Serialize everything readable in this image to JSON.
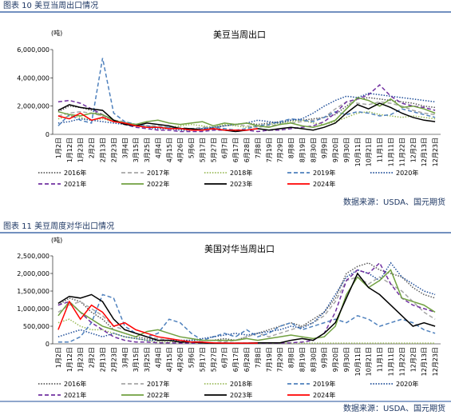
{
  "figures": [
    {
      "caption": "图表 10 美豆当周出口情况",
      "source": "数据来源：USDA、国元期货"
    },
    {
      "caption": "图表 11 美豆周度对华出口情况",
      "source": "数据来源：USDA、国元期货"
    }
  ],
  "chart_data": [
    {
      "type": "line",
      "title": "美豆当周出口",
      "y_label": "(吨)",
      "categories": [
        "1月2日",
        "1月12日",
        "1月23日",
        "2月2日",
        "2月13日",
        "2月23日",
        "3月4日",
        "3月15日",
        "3月25日",
        "4月4日",
        "4月15日",
        "4月26日",
        "5月6日",
        "5月17日",
        "5月27日",
        "6月7日",
        "6月17日",
        "6月28日",
        "7月8日",
        "7月19日",
        "7月29日",
        "8月8日",
        "8月19日",
        "8月30日",
        "9月9日",
        "9月20日",
        "9月30日",
        "10月11日",
        "10月21日",
        "11月1日",
        "11月11日",
        "11月22日",
        "12月2日",
        "12月13日",
        "12月23日"
      ],
      "ylim": [
        0,
        6000000
      ],
      "yticks": [
        0,
        {
          "value": 2000000,
          "label": "2,000,000"
        },
        {
          "value": 4000000,
          "label": "4,000,000"
        },
        {
          "value": 6000000,
          "label": "6,000,000"
        }
      ],
      "series": [
        {
          "name": "2016年",
          "color": "#595959",
          "dash": "dotted",
          "values": [
            1600000,
            2000000,
            1900000,
            1700000,
            1300000,
            1000000,
            800000,
            700000,
            600000,
            500000,
            500000,
            400000,
            400000,
            400000,
            500000,
            600000,
            700000,
            800000,
            700000,
            800000,
            900000,
            1000000,
            1000000,
            1100000,
            1200000,
            1400000,
            2000000,
            2500000,
            2600000,
            2500000,
            2400000,
            2300000,
            2200000,
            2000000,
            1900000
          ]
        },
        {
          "name": "2017年",
          "color": "#a6a6a6",
          "dash": "dashed",
          "values": [
            1300000,
            1500000,
            1600000,
            1500000,
            1300000,
            1000000,
            900000,
            700000,
            600000,
            600000,
            500000,
            500000,
            400000,
            500000,
            500000,
            600000,
            700000,
            600000,
            500000,
            600000,
            700000,
            800000,
            900000,
            1000000,
            1200000,
            1800000,
            2300000,
            2200000,
            2100000,
            2300000,
            2200000,
            2000000,
            1700000,
            1500000,
            1400000
          ]
        },
        {
          "name": "2018年",
          "color": "#9bbb59",
          "dash": "dotted",
          "values": [
            1100000,
            1300000,
            1200000,
            1000000,
            1100000,
            900000,
            800000,
            700000,
            600000,
            500000,
            500000,
            600000,
            700000,
            600000,
            500000,
            700000,
            600000,
            500000,
            600000,
            700000,
            800000,
            900000,
            1000000,
            800000,
            700000,
            900000,
            1200000,
            1500000,
            1600000,
            1400000,
            1300000,
            1200000,
            1300000,
            1200000,
            1100000
          ]
        },
        {
          "name": "2019年",
          "color": "#4f81bd",
          "dash": "dashed",
          "values": [
            600000,
            1400000,
            1000000,
            800000,
            5400000,
            1500000,
            900000,
            700000,
            600000,
            500000,
            500000,
            400000,
            300000,
            400000,
            500000,
            400000,
            300000,
            400000,
            600000,
            700000,
            900000,
            1100000,
            1000000,
            900000,
            1200000,
            1600000,
            1400000,
            1600000,
            1500000,
            1300000,
            1400000,
            1800000,
            1600000,
            1400000,
            1200000
          ]
        },
        {
          "name": "2020年",
          "color": "#1f4e99",
          "dash": "dotted",
          "values": [
            800000,
            900000,
            1100000,
            1000000,
            900000,
            800000,
            700000,
            600000,
            500000,
            400000,
            400000,
            300000,
            300000,
            400000,
            500000,
            600000,
            700000,
            800000,
            1000000,
            900000,
            800000,
            1000000,
            1100000,
            1500000,
            2000000,
            2400000,
            2700000,
            2600000,
            2900000,
            2800000,
            2700000,
            2600000,
            2500000,
            2400000,
            2300000
          ]
        },
        {
          "name": "2021年",
          "color": "#7030a0",
          "dash": "dashed",
          "values": [
            2300000,
            2400000,
            2200000,
            1800000,
            1400000,
            1000000,
            700000,
            500000,
            400000,
            300000,
            300000,
            200000,
            200000,
            200000,
            300000,
            300000,
            200000,
            300000,
            200000,
            300000,
            300000,
            400000,
            500000,
            600000,
            900000,
            1500000,
            2300000,
            2500000,
            2800000,
            3500000,
            2700000,
            2200000,
            2000000,
            1900000,
            1700000
          ]
        },
        {
          "name": "2022年",
          "color": "#70a040",
          "dash": "solid",
          "values": [
            1600000,
            1400000,
            1300000,
            1500000,
            1400000,
            1000000,
            800000,
            700000,
            900000,
            1000000,
            800000,
            700000,
            800000,
            900000,
            600000,
            800000,
            700000,
            800000,
            600000,
            500000,
            700000,
            800000,
            600000,
            500000,
            700000,
            1000000,
            1800000,
            2600000,
            2400000,
            2000000,
            2500000,
            1900000,
            2000000,
            1800000,
            1500000
          ]
        },
        {
          "name": "2023年",
          "color": "#000000",
          "dash": "solid",
          "values": [
            1700000,
            2100000,
            1900000,
            1800000,
            1700000,
            1000000,
            700000,
            600000,
            800000,
            700000,
            600000,
            400000,
            400000,
            300000,
            400000,
            300000,
            200000,
            300000,
            400000,
            300000,
            400000,
            500000,
            400000,
            300000,
            500000,
            800000,
            1500000,
            2100000,
            1800000,
            2200000,
            1900000,
            1500000,
            1200000,
            1000000,
            900000
          ]
        },
        {
          "name": "2024年",
          "color": "#ff0000",
          "dash": "solid",
          "values": [
            1300000,
            1100000,
            1500000,
            1000000,
            1200000,
            900000,
            800000,
            600000,
            500000,
            500000,
            400000,
            400000,
            300000,
            300000,
            400000,
            300000,
            300000,
            300000,
            400000,
            null,
            null,
            null,
            null,
            null,
            null,
            null,
            null,
            null,
            null,
            null,
            null,
            null,
            null,
            null,
            null
          ]
        }
      ]
    },
    {
      "type": "line",
      "title": "美国对华当周出口",
      "y_label": "(吨)",
      "categories": [
        "1月2日",
        "1月12日",
        "1月23日",
        "2月2日",
        "2月13日",
        "2月23日",
        "3月4日",
        "3月15日",
        "3月25日",
        "4月4日",
        "4月15日",
        "4月26日",
        "5月6日",
        "5月17日",
        "5月27日",
        "6月7日",
        "6月17日",
        "6月28日",
        "7月8日",
        "7月19日",
        "7月29日",
        "8月8日",
        "8月19日",
        "8月30日",
        "9月9日",
        "9月20日",
        "9月30日",
        "10月11日",
        "10月21日",
        "11月1日",
        "11月11日",
        "11月22日",
        "12月2日",
        "12月13日",
        "12月23日"
      ],
      "ylim": [
        0,
        2500000
      ],
      "yticks": [
        0,
        {
          "value": 500000,
          "label": "500,000"
        },
        {
          "value": 1000000,
          "label": "1,000,000"
        },
        {
          "value": 1500000,
          "label": "1,500,000"
        },
        {
          "value": 2000000,
          "label": "2,000,000"
        },
        {
          "value": 2500000,
          "label": "2,500,000"
        }
      ],
      "series": [
        {
          "name": "2016年",
          "color": "#595959",
          "dash": "dotted",
          "values": [
            1100000,
            1300000,
            1200000,
            900000,
            700000,
            400000,
            300000,
            200000,
            150000,
            100000,
            100000,
            100000,
            100000,
            100000,
            100000,
            150000,
            100000,
            200000,
            300000,
            400000,
            500000,
            600000,
            500000,
            700000,
            900000,
            1300000,
            2000000,
            2200000,
            2300000,
            2100000,
            2000000,
            1900000,
            1600000,
            1400000,
            1300000
          ]
        },
        {
          "name": "2017年",
          "color": "#a6a6a6",
          "dash": "dashed",
          "values": [
            900000,
            1100000,
            1200000,
            1000000,
            800000,
            500000,
            400000,
            300000,
            200000,
            150000,
            100000,
            50000,
            50000,
            100000,
            100000,
            50000,
            100000,
            200000,
            300000,
            200000,
            300000,
            400000,
            500000,
            600000,
            800000,
            1200000,
            1800000,
            1900000,
            1700000,
            1900000,
            1700000,
            1500000,
            1200000,
            900000,
            700000
          ]
        },
        {
          "name": "2018年",
          "color": "#9bbb59",
          "dash": "dotted",
          "values": [
            600000,
            700000,
            500000,
            400000,
            400000,
            300000,
            200000,
            150000,
            100000,
            50000,
            50000,
            50000,
            20000,
            20000,
            20000,
            20000,
            20000,
            20000,
            20000,
            20000,
            20000,
            20000,
            20000,
            20000,
            20000,
            20000,
            20000,
            20000,
            20000,
            20000,
            20000,
            20000,
            20000,
            20000,
            20000
          ]
        },
        {
          "name": "2019年",
          "color": "#4f81bd",
          "dash": "dashed",
          "values": [
            50000,
            50000,
            200000,
            600000,
            1400000,
            1300000,
            500000,
            300000,
            200000,
            300000,
            700000,
            600000,
            300000,
            100000,
            200000,
            300000,
            200000,
            400000,
            200000,
            300000,
            500000,
            600000,
            400000,
            500000,
            600000,
            700000,
            600000,
            800000,
            700000,
            500000,
            600000,
            700000,
            600000,
            400000,
            300000
          ]
        },
        {
          "name": "2020年",
          "color": "#1f4e99",
          "dash": "dotted",
          "values": [
            200000,
            300000,
            400000,
            300000,
            200000,
            300000,
            200000,
            150000,
            100000,
            100000,
            100000,
            100000,
            100000,
            150000,
            200000,
            250000,
            300000,
            250000,
            300000,
            350000,
            400000,
            500000,
            450000,
            600000,
            900000,
            1400000,
            1900000,
            2100000,
            2000000,
            1800000,
            2300000,
            1900000,
            1700000,
            1500000,
            1400000
          ]
        },
        {
          "name": "2021年",
          "color": "#7030a0",
          "dash": "dashed",
          "values": [
            1100000,
            1200000,
            900000,
            600000,
            400000,
            200000,
            100000,
            50000,
            50000,
            30000,
            30000,
            20000,
            20000,
            20000,
            20000,
            20000,
            20000,
            20000,
            20000,
            20000,
            20000,
            30000,
            50000,
            100000,
            300000,
            900000,
            1800000,
            2100000,
            2000000,
            2300000,
            1700000,
            1300000,
            1100000,
            1000000,
            900000
          ]
        },
        {
          "name": "2022年",
          "color": "#70a040",
          "dash": "solid",
          "values": [
            800000,
            1200000,
            900000,
            700000,
            500000,
            400000,
            300000,
            200000,
            350000,
            400000,
            300000,
            200000,
            150000,
            100000,
            100000,
            100000,
            100000,
            150000,
            100000,
            150000,
            200000,
            250000,
            200000,
            150000,
            200000,
            500000,
            1400000,
            1900000,
            1600000,
            1800000,
            2100000,
            1300000,
            1200000,
            1100000,
            900000
          ]
        },
        {
          "name": "2023年",
          "color": "#000000",
          "dash": "solid",
          "values": [
            1150000,
            1350000,
            1300000,
            1400000,
            1200000,
            700000,
            400000,
            300000,
            200000,
            100000,
            100000,
            50000,
            50000,
            30000,
            20000,
            20000,
            20000,
            20000,
            30000,
            30000,
            30000,
            100000,
            150000,
            100000,
            300000,
            600000,
            1300000,
            2000000,
            1600000,
            1400000,
            1100000,
            800000,
            500000,
            600000,
            500000
          ]
        },
        {
          "name": "2024年",
          "color": "#ff0000",
          "dash": "solid",
          "values": [
            400000,
            1200000,
            700000,
            1100000,
            900000,
            500000,
            600000,
            400000,
            300000,
            200000,
            150000,
            100000,
            50000,
            50000,
            30000,
            20000,
            20000,
            20000,
            20000,
            null,
            null,
            null,
            null,
            null,
            null,
            null,
            null,
            null,
            null,
            null,
            null,
            null,
            null,
            null,
            null
          ]
        }
      ]
    }
  ]
}
